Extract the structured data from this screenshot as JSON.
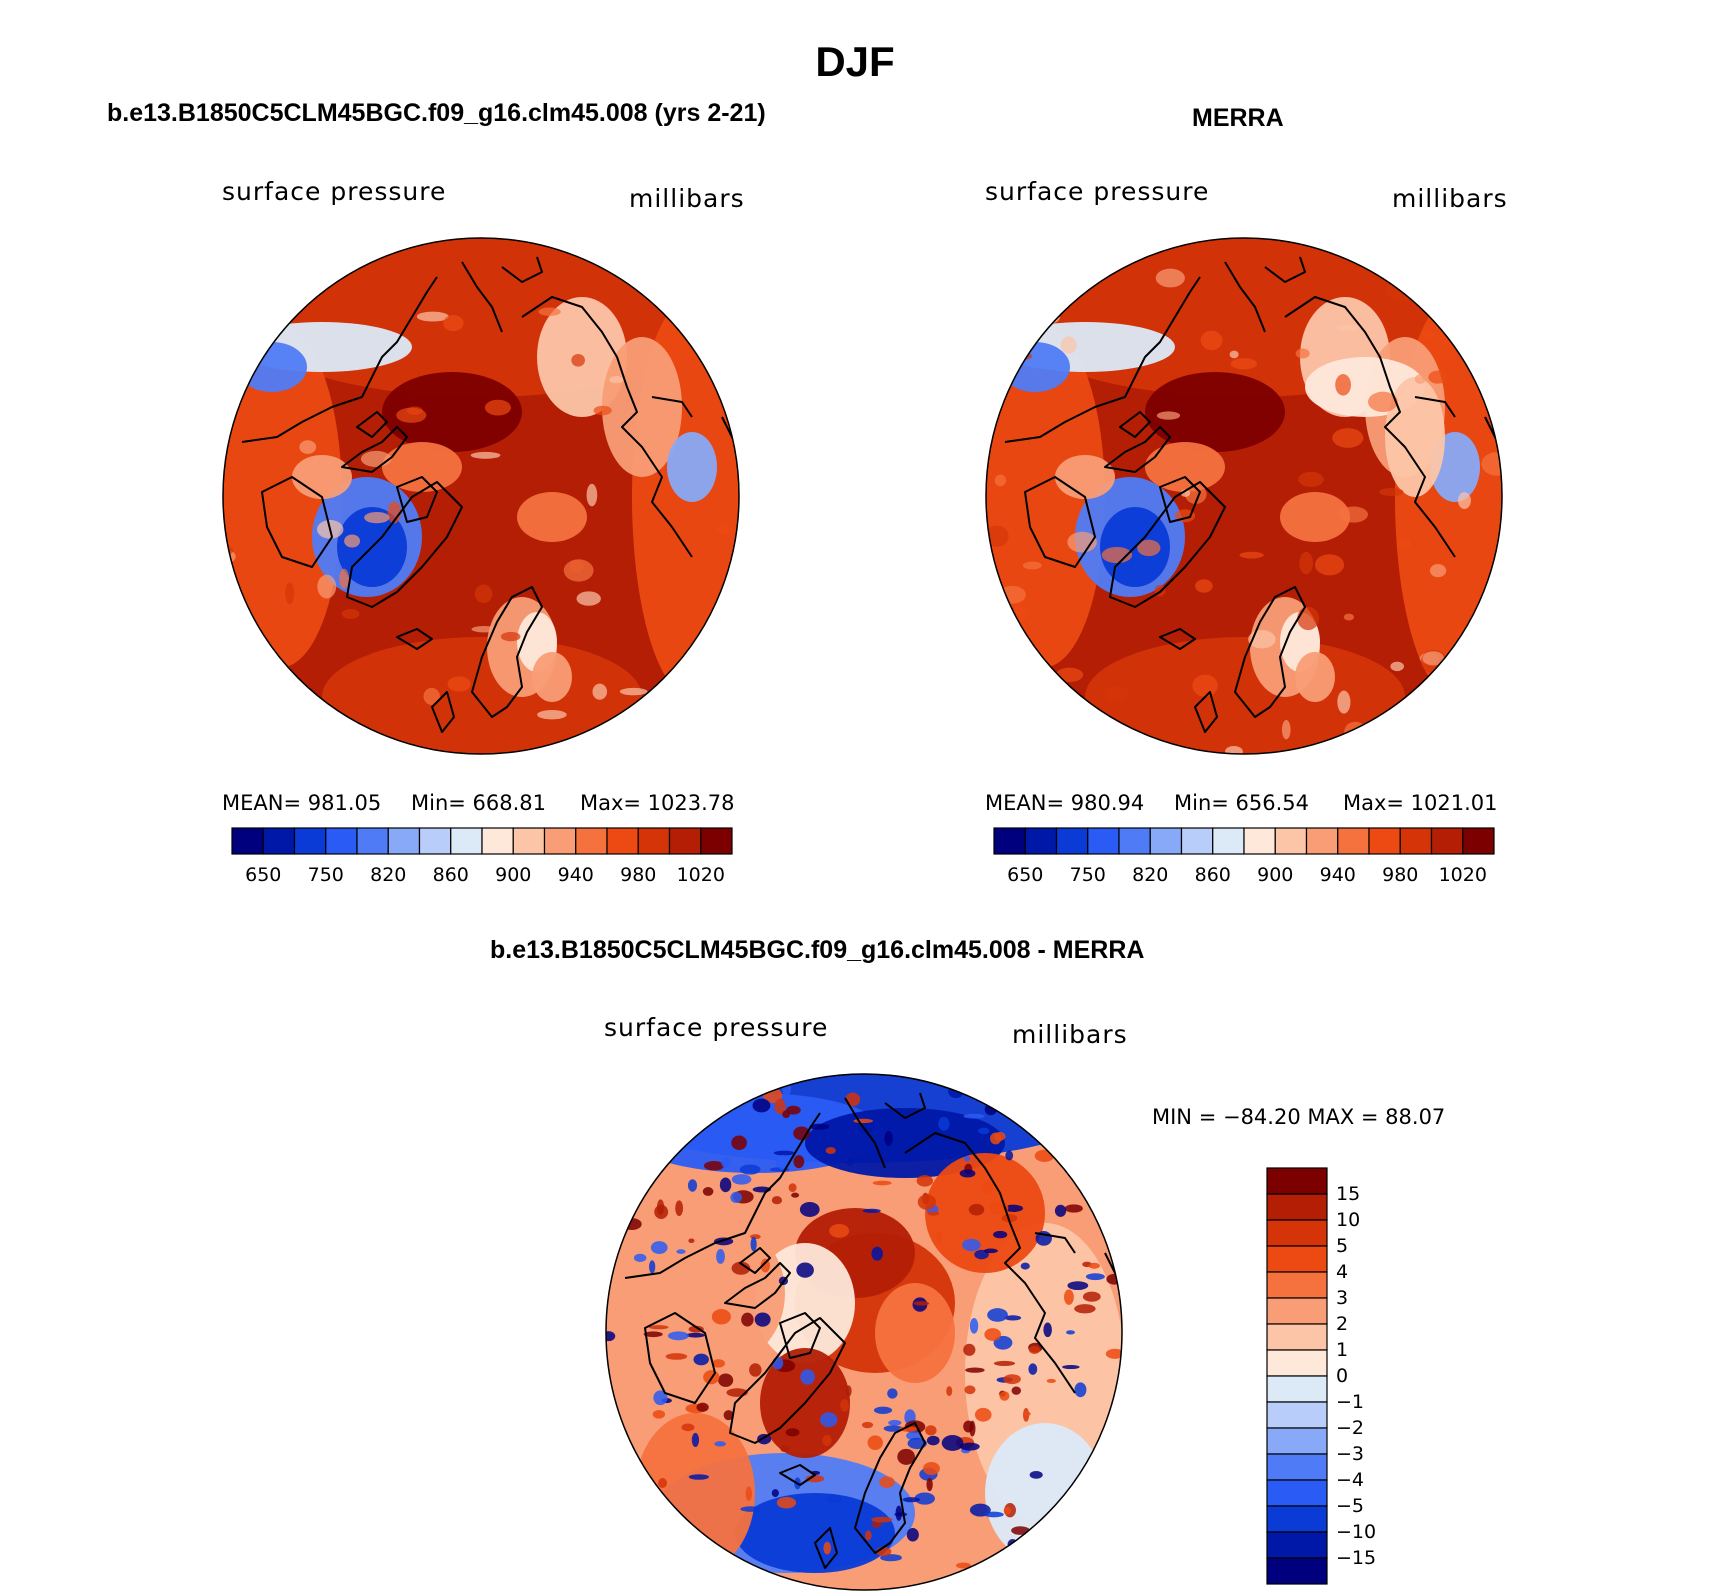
{
  "title": "DJF",
  "panels": {
    "model": {
      "heading": "b.e13.B1850C5CLM45BGC.f09_g16.clm45.008 (yrs 2-21)",
      "left_label": "surface pressure",
      "right_label": "millibars",
      "mean": "MEAN= 981.05",
      "min": "Min= 668.81",
      "max": "Max= 1023.78"
    },
    "obs": {
      "heading": "MERRA",
      "left_label": "surface pressure",
      "right_label": "millibars",
      "mean": "MEAN= 980.94",
      "min": "Min= 656.54",
      "max": "Max= 1021.01"
    },
    "diff": {
      "heading": "b.e13.B1850C5CLM45BGC.f09_g16.clm45.008 - MERRA",
      "left_label": "surface pressure",
      "right_label": "millibars",
      "minmax": "MIN = −84.20 MAX =   88.07"
    }
  },
  "chart_data": [
    {
      "type": "heatmap",
      "title": "b.e13.B1850C5CLM45BGC.f09_g16.clm45.008 (yrs 2-21)",
      "variable": "surface pressure",
      "units": "millibars",
      "projection": "north-polar-stereographic",
      "stats": {
        "mean": 981.05,
        "min": 668.81,
        "max": 1023.78
      },
      "colorbar": {
        "orientation": "horizontal",
        "tick_labels": [
          "650",
          "750",
          "820",
          "860",
          "900",
          "940",
          "980",
          "1020"
        ],
        "colors": [
          "#00007f",
          "#0018a8",
          "#0a3bd6",
          "#2a5cf5",
          "#4f7cf6",
          "#88a9f7",
          "#b8cdf9",
          "#dceaf8",
          "#fde8da",
          "#fcc5a8",
          "#f89d76",
          "#f5723f",
          "#ec4a12",
          "#d43408",
          "#b31e05",
          "#7d0000"
        ]
      }
    },
    {
      "type": "heatmap",
      "title": "MERRA",
      "variable": "surface pressure",
      "units": "millibars",
      "projection": "north-polar-stereographic",
      "stats": {
        "mean": 980.94,
        "min": 656.54,
        "max": 1021.01
      },
      "colorbar": {
        "orientation": "horizontal",
        "tick_labels": [
          "650",
          "750",
          "820",
          "860",
          "900",
          "940",
          "980",
          "1020"
        ],
        "colors": [
          "#00007f",
          "#0018a8",
          "#0a3bd6",
          "#2a5cf5",
          "#4f7cf6",
          "#88a9f7",
          "#b8cdf9",
          "#dceaf8",
          "#fde8da",
          "#fcc5a8",
          "#f89d76",
          "#f5723f",
          "#ec4a12",
          "#d43408",
          "#b31e05",
          "#7d0000"
        ]
      }
    },
    {
      "type": "heatmap",
      "title": "b.e13.B1850C5CLM45BGC.f09_g16.clm45.008 - MERRA",
      "variable": "surface pressure",
      "units": "millibars",
      "projection": "north-polar-stereographic",
      "stats": {
        "min": -84.2,
        "max": 88.07
      },
      "colorbar": {
        "orientation": "vertical",
        "tick_labels": [
          "15",
          "10",
          "5",
          "4",
          "3",
          "2",
          "1",
          "0",
          "−1",
          "−2",
          "−3",
          "−4",
          "−5",
          "−10",
          "−15"
        ],
        "colors": [
          "#7d0000",
          "#b31e05",
          "#d43408",
          "#ec4a12",
          "#f5723f",
          "#f89d76",
          "#fcc5a8",
          "#fde8da",
          "#dceaf8",
          "#b8cdf9",
          "#88a9f7",
          "#4f7cf6",
          "#2a5cf5",
          "#0a3bd6",
          "#0018a8",
          "#00007f"
        ]
      }
    }
  ]
}
